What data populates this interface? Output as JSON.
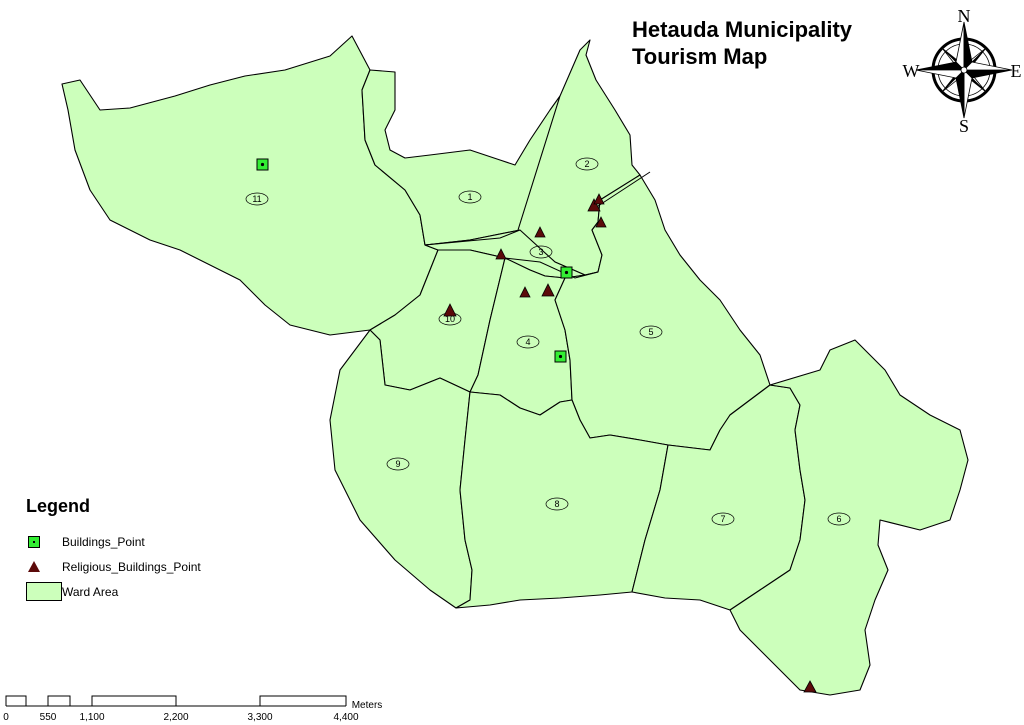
{
  "map": {
    "title_line1": "Hetauda Municipality",
    "title_line2": "Tourism Map",
    "fill_color": "#ccffbb",
    "building_color": "#33ee33",
    "religious_color": "#5c0a0a",
    "wards": [
      "1",
      "2",
      "3",
      "4",
      "5",
      "6",
      "7",
      "8",
      "9",
      "10",
      "11"
    ]
  },
  "compass": {
    "n": "N",
    "s": "S",
    "e": "E",
    "w": "W"
  },
  "legend": {
    "title": "Legend",
    "items": [
      {
        "label": "Buildings_Point",
        "symbol": "green-square"
      },
      {
        "label": "Religious_Buildings_Point",
        "symbol": "dark-red-triangle"
      },
      {
        "label": "Ward Area",
        "symbol": "green-rectangle"
      }
    ]
  },
  "scale": {
    "ticks": [
      "0",
      "550",
      "1,100",
      "2,200",
      "3,300",
      "4,400"
    ],
    "unit": "Meters"
  }
}
